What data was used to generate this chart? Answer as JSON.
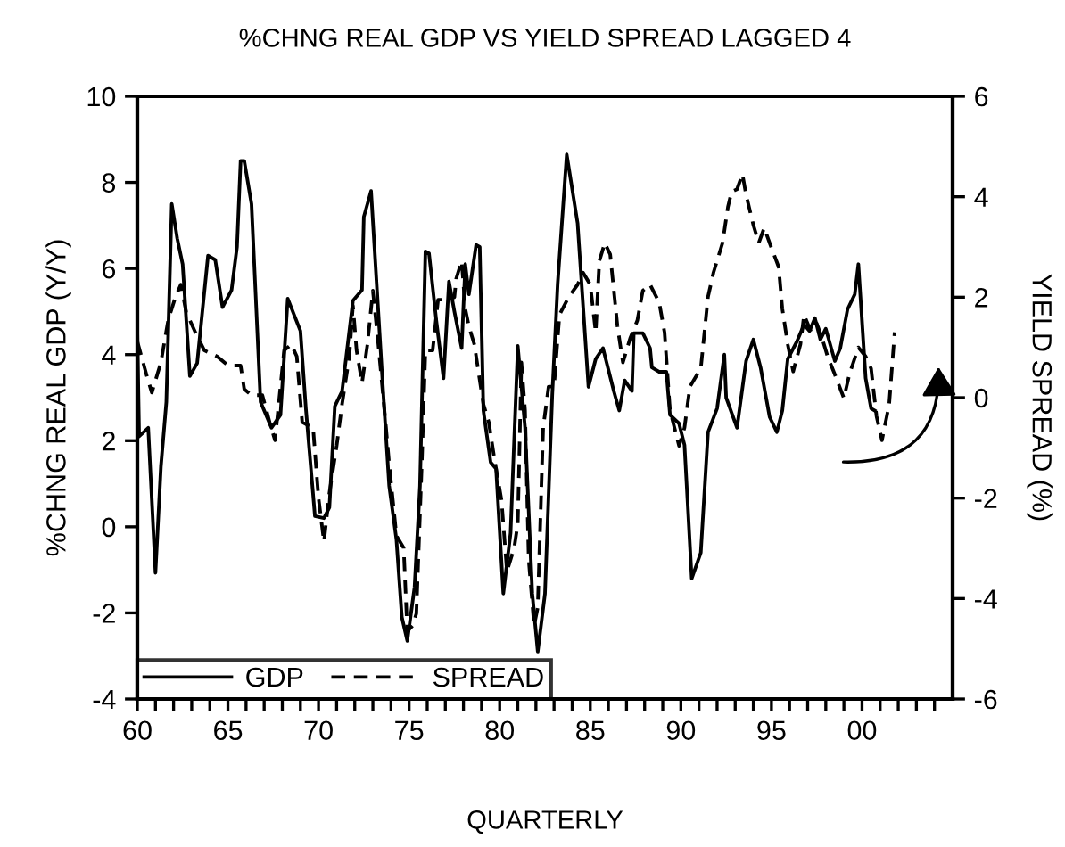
{
  "chart_data": {
    "type": "line",
    "title": "%CHNG REAL GDP VS YIELD SPREAD LAGGED 4",
    "xlabel": "QUARTERLY",
    "ylabel": "%CHNG REAL GDP (Y/Y)",
    "y2label": "YIELD SPREAD (%)",
    "xlim": [
      1960,
      2005
    ],
    "ylim": [
      -4,
      10
    ],
    "yticks": [
      -4,
      -2,
      0,
      2,
      4,
      6,
      8,
      10
    ],
    "y2lim": [
      -6,
      6
    ],
    "y2ticks": [
      -6,
      -4,
      -2,
      0,
      2,
      4,
      6
    ],
    "xticks": [
      {
        "value": 1960,
        "label": "60"
      },
      {
        "value": 1961,
        "label": null
      },
      {
        "value": 1962,
        "label": null
      },
      {
        "value": 1963,
        "label": null
      },
      {
        "value": 1964,
        "label": null
      },
      {
        "value": 1965,
        "label": "65"
      },
      {
        "value": 1966,
        "label": null
      },
      {
        "value": 1967,
        "label": null
      },
      {
        "value": 1968,
        "label": null
      },
      {
        "value": 1969,
        "label": null
      },
      {
        "value": 1970,
        "label": "70"
      },
      {
        "value": 1971,
        "label": null
      },
      {
        "value": 1972,
        "label": null
      },
      {
        "value": 1973,
        "label": null
      },
      {
        "value": 1974,
        "label": null
      },
      {
        "value": 1975,
        "label": "75"
      },
      {
        "value": 1976,
        "label": null
      },
      {
        "value": 1977,
        "label": null
      },
      {
        "value": 1978,
        "label": null
      },
      {
        "value": 1979,
        "label": null
      },
      {
        "value": 1980,
        "label": "80"
      },
      {
        "value": 1981,
        "label": null
      },
      {
        "value": 1982,
        "label": null
      },
      {
        "value": 1983,
        "label": null
      },
      {
        "value": 1984,
        "label": null
      },
      {
        "value": 1985,
        "label": "85"
      },
      {
        "value": 1986,
        "label": null
      },
      {
        "value": 1987,
        "label": null
      },
      {
        "value": 1988,
        "label": null
      },
      {
        "value": 1989,
        "label": null
      },
      {
        "value": 1990,
        "label": "90"
      },
      {
        "value": 1991,
        "label": null
      },
      {
        "value": 1992,
        "label": null
      },
      {
        "value": 1993,
        "label": null
      },
      {
        "value": 1994,
        "label": null
      },
      {
        "value": 1995,
        "label": "95"
      },
      {
        "value": 1996,
        "label": null
      },
      {
        "value": 1997,
        "label": null
      },
      {
        "value": 1998,
        "label": null
      },
      {
        "value": 1999,
        "label": null
      },
      {
        "value": 2000,
        "label": "00"
      },
      {
        "value": 2001,
        "label": null
      },
      {
        "value": 2002,
        "label": null
      },
      {
        "value": 2003,
        "label": null
      },
      {
        "value": 2004,
        "label": null
      }
    ],
    "grid": false,
    "legend": "bottom left",
    "marker": "none",
    "series": [
      {
        "name": "GDP",
        "color": "#000000",
        "line_style": "solid",
        "x": [
          1960.0,
          1960.1,
          1960.6,
          1961.0,
          1961.3,
          1961.6,
          1961.9,
          1962.2,
          1962.5,
          1962.9,
          1963.3,
          1963.9,
          1964.3,
          1964.7,
          1965.2,
          1965.5,
          1965.7,
          1965.9,
          1966.3,
          1966.8,
          1967.4,
          1967.9,
          1968.3,
          1969.0,
          1969.3,
          1969.8,
          1970.3,
          1970.6,
          1970.9,
          1971.3,
          1971.9,
          1972.4,
          1972.5,
          1972.9,
          1973.5,
          1973.9,
          1974.3,
          1974.6,
          1974.9,
          1975.3,
          1975.6,
          1975.9,
          1976.1,
          1976.5,
          1976.9,
          1977.2,
          1977.5,
          1977.9,
          1978.1,
          1978.3,
          1978.7,
          1978.9,
          1979.1,
          1979.5,
          1979.8,
          1980.2,
          1980.6,
          1981.0,
          1981.4,
          1981.8,
          1982.1,
          1982.5,
          1982.9,
          1983.2,
          1983.7,
          1984.3,
          1984.9,
          1985.3,
          1985.7,
          1986.3,
          1986.6,
          1986.9,
          1987.3,
          1987.4,
          1987.9,
          1988.3,
          1988.4,
          1988.8,
          1989.2,
          1989.4,
          1989.9,
          1990.2,
          1990.6,
          1991.1,
          1991.5,
          1992.0,
          1992.4,
          1992.5,
          1993.1,
          1993.6,
          1994.0,
          1994.4,
          1994.9,
          1995.3,
          1995.6,
          1995.9,
          1996.4,
          1996.8,
          1997.1,
          1997.4,
          1997.7,
          1998.0,
          1998.5,
          1998.8,
          1999.2,
          1999.6,
          1999.8,
          2000.2,
          2000.5,
          2000.7
        ],
        "values": [
          4.55,
          2.1,
          2.3,
          -1.07,
          1.4,
          2.9,
          7.5,
          6.7,
          6.1,
          3.5,
          3.8,
          6.3,
          6.2,
          5.1,
          5.5,
          6.5,
          8.5,
          8.5,
          7.5,
          2.9,
          2.3,
          2.6,
          5.3,
          4.55,
          2.75,
          0.25,
          0.2,
          0.45,
          2.8,
          3.15,
          5.25,
          5.5,
          7.2,
          7.8,
          3.6,
          0.95,
          -0.3,
          -2.1,
          -2.65,
          -1.4,
          0.95,
          6.4,
          6.35,
          4.8,
          3.45,
          5.7,
          5.0,
          4.15,
          6.1,
          5.4,
          6.55,
          6.5,
          2.7,
          1.5,
          1.35,
          -1.55,
          -0.15,
          4.2,
          2.3,
          -1.55,
          -2.9,
          -1.55,
          3.05,
          5.65,
          8.65,
          7.05,
          3.25,
          3.9,
          4.15,
          3.15,
          2.7,
          3.4,
          3.15,
          4.5,
          4.5,
          4.15,
          3.7,
          3.6,
          3.6,
          2.6,
          2.4,
          1.9,
          -1.2,
          -0.6,
          2.2,
          2.75,
          4.0,
          3.0,
          2.3,
          3.85,
          4.35,
          3.7,
          2.55,
          2.2,
          2.7,
          3.9,
          4.3,
          4.7,
          4.55,
          4.85,
          4.35,
          4.6,
          3.85,
          4.15,
          5.05,
          5.4,
          6.1,
          3.45,
          2.75,
          2.7
        ]
      },
      {
        "name": "SPREAD",
        "color": "#000000",
        "line_style": "dashed",
        "axis": "y2",
        "x": [
          1960.0,
          1960.5,
          1960.8,
          1961.3,
          1961.7,
          1962.1,
          1962.4,
          1962.7,
          1963.2,
          1963.7,
          1964.4,
          1965.0,
          1965.7,
          1965.9,
          1966.3,
          1966.9,
          1967.3,
          1967.6,
          1968.1,
          1968.5,
          1968.8,
          1969.1,
          1969.7,
          1970.0,
          1970.3,
          1970.6,
          1971.0,
          1971.3,
          1971.7,
          1971.9,
          1972.1,
          1972.4,
          1972.7,
          1973.0,
          1973.3,
          1973.7,
          1973.9,
          1974.3,
          1974.7,
          1974.9,
          1975.2,
          1975.4,
          1975.7,
          1975.9,
          1976.3,
          1976.6,
          1977.1,
          1977.5,
          1977.6,
          1977.9,
          1978.1,
          1978.3,
          1978.6,
          1979.1,
          1979.4,
          1979.7,
          1980.1,
          1980.4,
          1980.8,
          1981.0,
          1981.2,
          1981.4,
          1981.6,
          1981.9,
          1982.1,
          1982.4,
          1982.7,
          1983.0,
          1983.3,
          1983.8,
          1984.3,
          1984.6,
          1985.0,
          1985.3,
          1985.5,
          1985.8,
          1986.1,
          1986.5,
          1986.8,
          1987.2,
          1987.6,
          1987.9,
          1988.3,
          1988.8,
          1989.1,
          1989.4,
          1989.9,
          1990.2,
          1990.5,
          1991.1,
          1991.5,
          1991.8,
          1992.3,
          1992.6,
          1992.8,
          1993.1,
          1993.4,
          1993.6,
          1994.0,
          1994.3,
          1994.6,
          1994.9,
          1995.4,
          1995.6,
          1995.9,
          1996.2,
          1996.6,
          1996.8,
          1997.2,
          1997.5,
          1997.8,
          1998.1,
          1998.5,
          1999.0,
          1999.3,
          1999.8,
          2000.2,
          2000.5,
          2000.8,
          2001.1,
          2001.5,
          2001.8
        ],
        "values": [
          1.12,
          0.46,
          0.1,
          0.7,
          1.54,
          2.0,
          2.25,
          1.7,
          1.3,
          0.94,
          0.82,
          0.64,
          0.64,
          0.17,
          0.05,
          0.05,
          -0.49,
          -0.85,
          0.94,
          1.06,
          0.82,
          -0.49,
          -0.6,
          -2.0,
          -2.87,
          -1.9,
          -0.96,
          -0.13,
          0.82,
          1.83,
          0.94,
          0.29,
          1.06,
          2.13,
          1.06,
          -0.49,
          -1.32,
          -2.75,
          -2.99,
          -4.65,
          -4.54,
          -4.3,
          -1.32,
          0.94,
          0.94,
          1.95,
          1.95,
          2.0,
          2.37,
          2.72,
          1.77,
          1.42,
          1.06,
          -0.13,
          -0.49,
          -1.2,
          -2.04,
          -3.46,
          -2.99,
          -2.51,
          0.7,
          -0.25,
          -3.22,
          -4.54,
          -4.18,
          -0.6,
          0.22,
          0.22,
          1.65,
          2.0,
          2.25,
          2.49,
          2.25,
          1.3,
          2.72,
          3.08,
          2.85,
          1.42,
          0.7,
          1.18,
          1.54,
          2.13,
          2.25,
          1.9,
          1.3,
          -0.25,
          -0.96,
          -0.6,
          0.22,
          0.58,
          2.01,
          2.49,
          3.08,
          3.8,
          4.1,
          4.15,
          4.45,
          4.04,
          3.44,
          3.08,
          3.38,
          3.08,
          2.6,
          1.77,
          1.06,
          0.52,
          1.06,
          1.65,
          1.3,
          1.48,
          1.18,
          0.82,
          0.46,
          -0.01,
          0.46,
          1.0,
          0.82,
          0.58,
          -0.37,
          -0.85,
          -0.13,
          1.3
        ]
      }
    ]
  }
}
